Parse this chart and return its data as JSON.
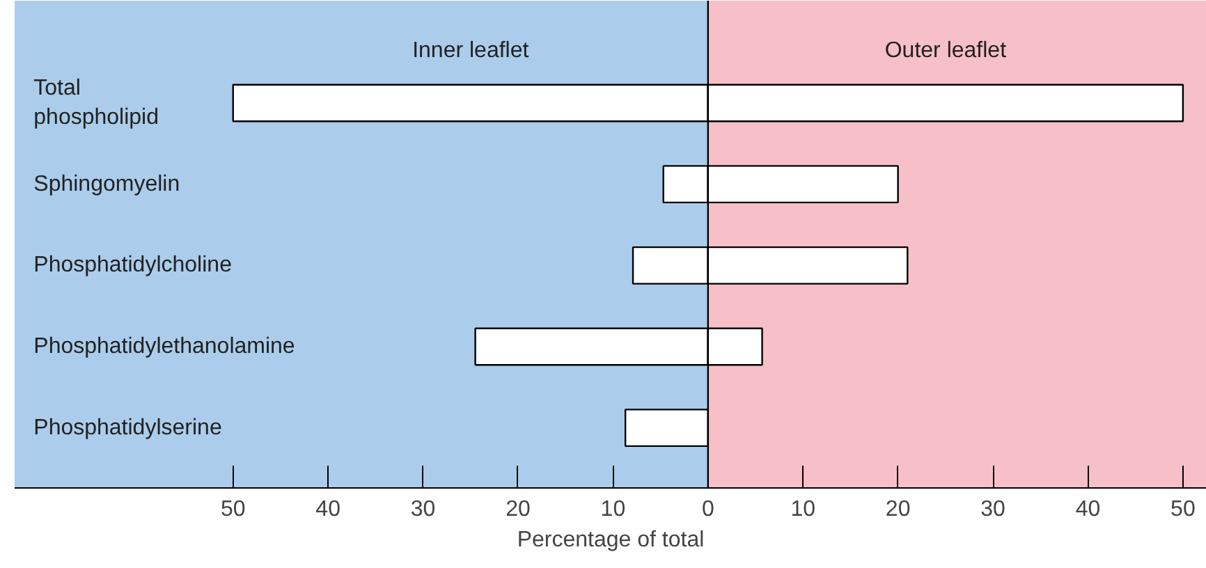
{
  "chart_data": {
    "type": "bar",
    "orientation": "horizontal",
    "xlabel": "Percentage of total",
    "categories": [
      "Total\nphospholipid",
      "Sphingomyelin",
      "Phosphatidylcholine",
      "Phosphatidylethanolamine",
      "Phosphatidylserine"
    ],
    "series": [
      {
        "color": "#ffffff",
        "values": [
          -50,
          -4.7,
          -7.9,
          -24.5,
          -8.7
        ]
      },
      {
        "color": "#ffffff",
        "values": [
          50,
          20,
          21,
          5.7,
          null
        ]
      }
    ],
    "xlim": [
      -73,
      52.5
    ],
    "xticks": [
      {
        "value": -50,
        "label": "50"
      },
      {
        "value": -40,
        "label": "40"
      },
      {
        "value": -30,
        "label": "30"
      },
      {
        "value": -20,
        "label": "20"
      },
      {
        "value": -10,
        "label": "10"
      },
      0,
      10,
      20,
      30,
      40,
      50
    ],
    "bands": [
      {
        "axis": "x",
        "from": -73,
        "to": 0,
        "label": "Inner leaflet",
        "color": "#abcdeb"
      },
      {
        "axis": "x",
        "from": 0,
        "to": 52.5,
        "label": "Outer leaflet",
        "color": "#f7bfc7"
      }
    ],
    "ref_lines": [
      {
        "axis": "x",
        "value": 0,
        "color": "#000000"
      }
    ],
    "stacked": true
  }
}
